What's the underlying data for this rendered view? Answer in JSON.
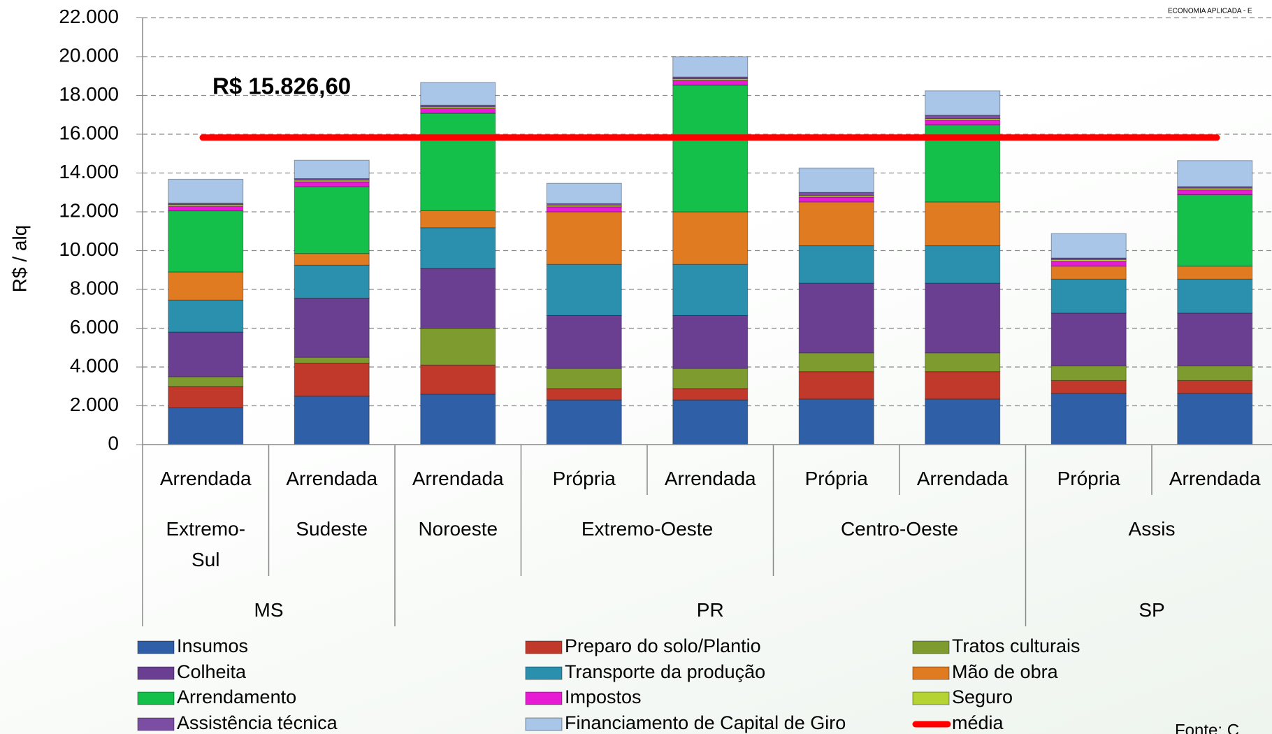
{
  "chart_data": {
    "type": "stacked_bar",
    "corner_text": "ECONOMIA APLICADA - E",
    "source": "Fonte: C",
    "y_label": "R$ / alq",
    "categories": [
      "Arrendada",
      "Arrendada",
      "Arrendada",
      "Própria",
      "Arrendada",
      "Própria",
      "Arrendada",
      "Própria",
      "Arrendada"
    ],
    "regions": [
      "Extremo-Sul",
      "Sudeste",
      "Noroeste",
      "Extremo-Oeste",
      null,
      "Centro-Oeste",
      null,
      "Assis",
      null
    ],
    "states": [
      "MS",
      null,
      "PR",
      null,
      null,
      null,
      null,
      "SP",
      null
    ],
    "ylim": [
      0,
      22000
    ],
    "yticks": [
      0,
      {
        "value": 2000,
        "label": "2.000"
      },
      {
        "value": 4000,
        "label": "4.000"
      },
      {
        "value": 6000,
        "label": "6.000"
      },
      {
        "value": 8000,
        "label": "8.000"
      },
      {
        "value": 10000,
        "label": "10.000"
      },
      {
        "value": 12000,
        "label": "12.000"
      },
      {
        "value": 14000,
        "label": "14.000"
      },
      {
        "value": 16000,
        "label": "16.000"
      },
      {
        "value": 18000,
        "label": "18.000"
      },
      {
        "value": 20000,
        "label": "20.000"
      },
      {
        "value": 22000,
        "label": "22.000"
      }
    ],
    "grid": true,
    "series": [
      {
        "name": "Insumos",
        "color": "#2f5fa6",
        "values": [
          1900,
          2500,
          2600,
          2300,
          2300,
          2350,
          2350,
          2640,
          2640
        ]
      },
      {
        "name": "Preparo do solo/Plantio",
        "color": "#c0392b",
        "values": [
          1100,
          1700,
          1500,
          590,
          590,
          1410,
          1410,
          660,
          660
        ]
      },
      {
        "name": "Tratos culturais",
        "color": "#7d9b2f",
        "values": [
          500,
          300,
          1900,
          1040,
          1040,
          970,
          970,
          760,
          760
        ]
      },
      {
        "name": "Colheita",
        "color": "#6a3f91",
        "values": [
          2300,
          3050,
          3080,
          2720,
          2720,
          3590,
          3590,
          2720,
          2720
        ]
      },
      {
        "name": "Transporte da produção",
        "color": "#2b8fae",
        "values": [
          1650,
          1700,
          2100,
          2640,
          2640,
          1930,
          1930,
          1750,
          1750
        ]
      },
      {
        "name": "Mão de obra",
        "color": "#e07b22",
        "values": [
          1450,
          600,
          880,
          2710,
          2710,
          2260,
          2260,
          670,
          670
        ]
      },
      {
        "name": "Arrendamento",
        "color": "#14c04a",
        "values": [
          3150,
          3450,
          5020,
          0,
          6530,
          0,
          3970,
          0,
          3680
        ]
      },
      {
        "name": "Impostos",
        "color": "#e81bd5",
        "values": [
          250,
          250,
          250,
          260,
          250,
          250,
          250,
          250,
          250
        ]
      },
      {
        "name": "Seguro",
        "color": "#b6d334",
        "values": [
          80,
          80,
          80,
          80,
          80,
          80,
          80,
          90,
          90
        ]
      },
      {
        "name": "Assistência técnica",
        "color": "#7b4ea3",
        "values": [
          70,
          80,
          90,
          80,
          90,
          160,
          170,
          80,
          80
        ]
      },
      {
        "name": "Financiamento de Capital de Giro",
        "color": "#a9c5e8",
        "values": [
          1230,
          950,
          1170,
          1050,
          1050,
          1260,
          1260,
          1260,
          1340
        ]
      }
    ],
    "average": {
      "name": "média",
      "value": 15826.6,
      "label": "R$ 15.826,60",
      "color": "#ff0000"
    }
  }
}
